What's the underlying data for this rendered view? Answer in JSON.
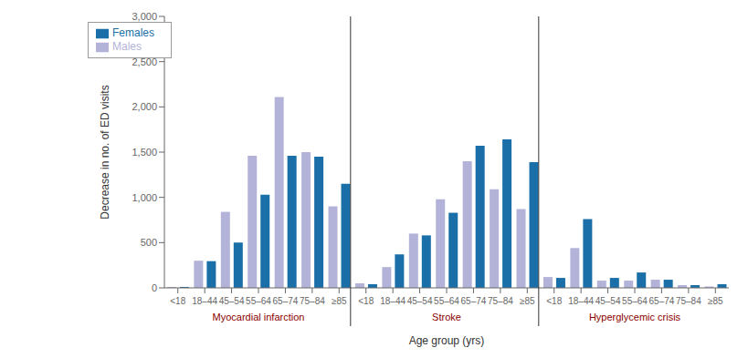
{
  "chart_data": {
    "type": "bar",
    "xlabel": "Age group (yrs)",
    "ylabel": "Decrease in no. of ED visits",
    "categories": [
      "<18",
      "18–44",
      "45–54",
      "55–64",
      "65–74",
      "75–84",
      "≥85",
      "<18",
      "18–44",
      "45–54",
      "55–64",
      "65–74",
      "75–84",
      "≥85",
      "<18",
      "18–44",
      "45–54",
      "55–64",
      "65–74",
      "75–84",
      "≥85"
    ],
    "groups": [
      {
        "name": "Myocardial infarction",
        "color": "#8b0000"
      },
      {
        "name": "Stroke",
        "color": "#8b0000"
      },
      {
        "name": "Hyperglycemic crisis",
        "color": "#8b0000"
      }
    ],
    "series": [
      {
        "name": "Males",
        "color": "#b3b3d9",
        "values": [
          10,
          300,
          840,
          1460,
          2110,
          1500,
          900,
          50,
          230,
          600,
          980,
          1400,
          1090,
          870,
          120,
          440,
          80,
          80,
          90,
          30,
          15
        ]
      },
      {
        "name": "Females",
        "color": "#1a6fa8",
        "values": [
          10,
          295,
          500,
          1030,
          1460,
          1450,
          1150,
          40,
          370,
          580,
          830,
          1570,
          1640,
          1390,
          110,
          760,
          110,
          170,
          90,
          30,
          40
        ]
      }
    ],
    "ylim": [
      0,
      3000
    ],
    "yticks": [
      0,
      500,
      {
        "value": 1000,
        "label": "1,000"
      },
      {
        "value": 1500,
        "label": "1,500"
      },
      {
        "value": 2000,
        "label": "2,000"
      },
      {
        "value": 2500,
        "label": "2,500"
      },
      {
        "value": 3000,
        "label": "3,000"
      }
    ],
    "grid": false,
    "legend": "upper left"
  }
}
